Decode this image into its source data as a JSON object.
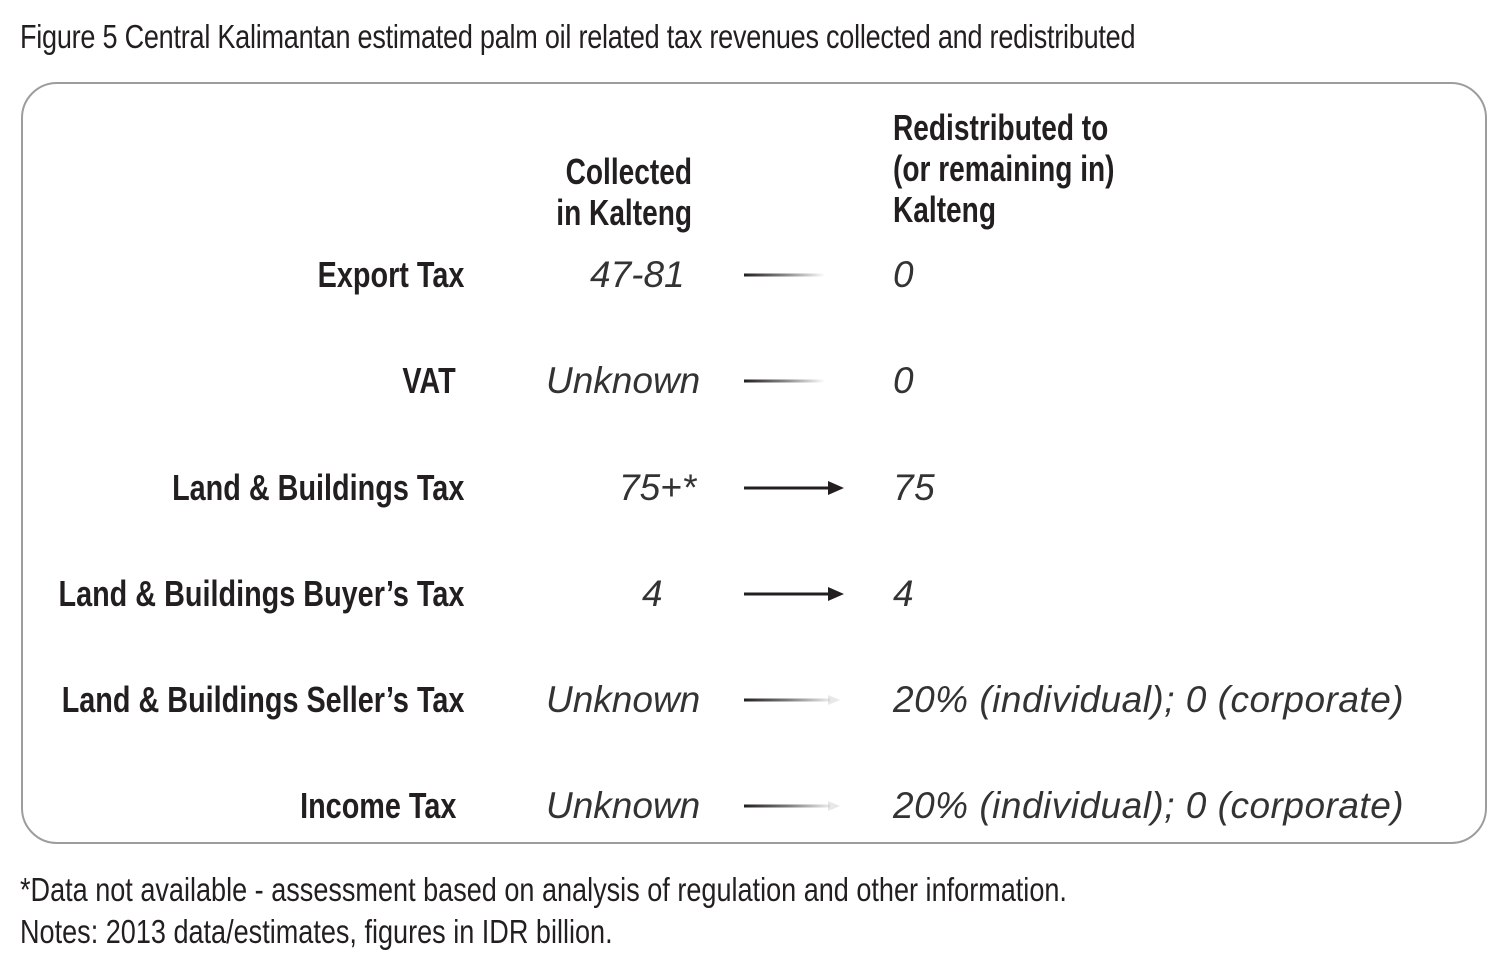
{
  "title": "Figure 5 Central Kalimantan estimated palm oil related tax revenues collected and redistributed",
  "headers": {
    "collected_line1": "Collected",
    "collected_line2": "in Kalteng",
    "redistributed_line1": "Redistributed to",
    "redistributed_line2": "(or remaining in)",
    "redistributed_line3": "Kalteng"
  },
  "rows": [
    {
      "label": "Export Tax",
      "collected": "47-81",
      "redistributed": "0",
      "arrow": "faded"
    },
    {
      "label": "VAT",
      "collected": "Unknown",
      "redistributed": "0",
      "arrow": "faded"
    },
    {
      "label": "Land & Buildings Tax",
      "collected": "75+*",
      "redistributed": "75",
      "arrow": "solid"
    },
    {
      "label": "Land & Buildings Buyer’s Tax",
      "collected": "4",
      "redistributed": "4",
      "arrow": "solid"
    },
    {
      "label": "Land & Buildings Seller’s Tax",
      "collected": "Unknown",
      "redistributed": "20% (individual); 0 (corporate)",
      "arrow": "partial"
    },
    {
      "label": "Income Tax",
      "collected": "Unknown",
      "redistributed": "20% (individual); 0 (corporate)",
      "arrow": "partial"
    }
  ],
  "footnotes": {
    "asterisk": "*Data not available - assessment based on analysis of regulation and other information.",
    "notes": "Notes: 2013 data/estimates, figures in IDR billion."
  },
  "colors": {
    "text": "#231f20",
    "border": "#9d9d9d",
    "arrow": "#231f20"
  }
}
